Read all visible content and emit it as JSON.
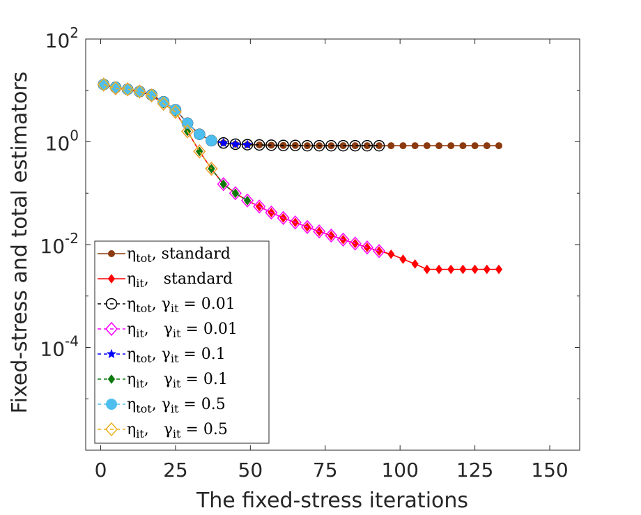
{
  "chart_data": {
    "type": "line",
    "title": "",
    "xlabel": "The  fixed-stress iterations",
    "ylabel": "Fixed-stress and total estimators",
    "xlim": [
      -5,
      160
    ],
    "ylim_log10": [
      -6,
      2
    ],
    "yscale": "log",
    "xticks": [
      0,
      25,
      50,
      75,
      100,
      125,
      150
    ],
    "xtick_labels": [
      "0",
      "25",
      "50",
      "75",
      "100",
      "125",
      "150"
    ],
    "yticks_log10": [
      2,
      0,
      -2,
      -4
    ],
    "ytick_labels": [
      {
        "base": "10",
        "exp": "2"
      },
      {
        "base": "10",
        "exp": "0"
      },
      {
        "base": "10",
        "exp": "-2"
      },
      {
        "base": "10",
        "exp": "-4"
      }
    ],
    "legend_position": "lower-left",
    "series": [
      {
        "name": "eta_tot, standard",
        "legend": {
          "sym": "η",
          "sub": "tot",
          "text": ", standard"
        },
        "color": "#8B3A0E",
        "dash": "",
        "marker": "dot-small",
        "marker_every": 4,
        "x": [
          1,
          5,
          9,
          13,
          17,
          21,
          25,
          29,
          33,
          37,
          41,
          45,
          49,
          53,
          57,
          61,
          65,
          69,
          73,
          77,
          81,
          85,
          89,
          93,
          97,
          101,
          105,
          109,
          113,
          117,
          121,
          125,
          129,
          133
        ],
        "y": [
          13,
          11.5,
          10.5,
          9.5,
          8.2,
          6,
          4.2,
          2.3,
          1.4,
          1.05,
          0.95,
          0.9,
          0.88,
          0.87,
          0.86,
          0.85,
          0.85,
          0.84,
          0.84,
          0.84,
          0.84,
          0.84,
          0.84,
          0.84,
          0.84,
          0.84,
          0.84,
          0.84,
          0.84,
          0.84,
          0.84,
          0.84,
          0.84,
          0.84
        ]
      },
      {
        "name": "eta_it, standard",
        "legend": {
          "sym": "η",
          "sub": "it",
          "text": ",   standard"
        },
        "color": "#FF0000",
        "dash": "",
        "marker": "diamond-filled",
        "marker_every": 4,
        "x": [
          1,
          5,
          9,
          13,
          17,
          21,
          25,
          29,
          33,
          37,
          41,
          45,
          49,
          53,
          57,
          61,
          65,
          69,
          73,
          77,
          81,
          85,
          89,
          93,
          97,
          101,
          105,
          109,
          113,
          117,
          121,
          125,
          129,
          133
        ],
        "y": [
          13,
          11,
          10.5,
          9.5,
          8,
          5.5,
          3.8,
          1.6,
          0.65,
          0.3,
          0.15,
          0.1,
          0.072,
          0.055,
          0.042,
          0.033,
          0.027,
          0.022,
          0.018,
          0.015,
          0.0125,
          0.0105,
          0.0088,
          0.0075,
          0.0065,
          0.0052,
          0.0042,
          0.0033,
          0.0033,
          0.0033,
          0.0033,
          0.0033,
          0.0033,
          0.0033
        ]
      },
      {
        "name": "eta_tot, gamma_it = 0.01",
        "legend": {
          "sym": "η",
          "sub": "tot",
          "text": ", γ",
          "sub2": "it",
          "text2": " = 0.01"
        },
        "color": "#000000",
        "dash": "5,4",
        "marker": "circle-open",
        "marker_every": 4,
        "x": [
          1,
          5,
          9,
          13,
          17,
          21,
          25,
          29,
          33,
          37,
          41,
          45,
          49,
          53,
          57,
          61,
          65,
          69,
          73,
          77,
          81,
          85,
          89,
          93
        ],
        "y": [
          13,
          11.5,
          10.5,
          9.5,
          8.2,
          6,
          4.2,
          2.3,
          1.4,
          1.05,
          0.95,
          0.9,
          0.88,
          0.87,
          0.86,
          0.85,
          0.85,
          0.84,
          0.84,
          0.84,
          0.84,
          0.84,
          0.84,
          0.84
        ]
      },
      {
        "name": "eta_it, gamma_it = 0.01",
        "legend": {
          "sym": "η",
          "sub": "it",
          "text": ",   γ",
          "sub2": "it",
          "text2": " = 0.01"
        },
        "color": "#FF00FF",
        "dash": "5,4",
        "marker": "diamond-open",
        "marker_every": 4,
        "x": [
          1,
          5,
          9,
          13,
          17,
          21,
          25,
          29,
          33,
          37,
          41,
          45,
          49,
          53,
          57,
          61,
          65,
          69,
          73,
          77,
          81,
          85,
          89,
          93
        ],
        "y": [
          13,
          11,
          10.5,
          9.5,
          8,
          5.5,
          3.8,
          1.6,
          0.65,
          0.3,
          0.15,
          0.1,
          0.072,
          0.055,
          0.042,
          0.033,
          0.027,
          0.022,
          0.018,
          0.015,
          0.0125,
          0.0105,
          0.0088,
          0.0075
        ]
      },
      {
        "name": "eta_tot, gamma_it = 0.1",
        "legend": {
          "sym": "η",
          "sub": "tot",
          "text": ", γ",
          "sub2": "it",
          "text2": " = 0.1"
        },
        "color": "#0000FF",
        "dash": "5,4",
        "marker": "star-filled",
        "marker_every": 4,
        "x": [
          1,
          5,
          9,
          13,
          17,
          21,
          25,
          29,
          33,
          37,
          41,
          45,
          49
        ],
        "y": [
          13,
          11.5,
          10.5,
          9.5,
          8.2,
          6,
          4.2,
          2.3,
          1.4,
          1.05,
          0.95,
          0.9,
          0.88
        ]
      },
      {
        "name": "eta_it, gamma_it = 0.1",
        "legend": {
          "sym": "η",
          "sub": "it",
          "text": ",   γ",
          "sub2": "it",
          "text2": " = 0.1"
        },
        "color": "#0B7A0B",
        "dash": "5,4",
        "marker": "diamond-filled",
        "marker_every": 4,
        "x": [
          1,
          5,
          9,
          13,
          17,
          21,
          25,
          29,
          33,
          37,
          41,
          45,
          49
        ],
        "y": [
          13,
          11,
          10.5,
          9.5,
          8,
          5.5,
          3.8,
          1.6,
          0.65,
          0.3,
          0.15,
          0.1,
          0.072
        ]
      },
      {
        "name": "eta_tot, gamma_it = 0.5",
        "legend": {
          "sym": "η",
          "sub": "tot",
          "text": ", γ",
          "sub2": "it",
          "text2": " = 0.5"
        },
        "color": "#4DBEEE",
        "dash": "5,4",
        "marker": "circle-filled",
        "marker_every": 4,
        "x": [
          1,
          5,
          9,
          13,
          17,
          21,
          25,
          29,
          33,
          37
        ],
        "y": [
          13,
          11.5,
          10.5,
          9.5,
          8.2,
          6,
          4.2,
          2.3,
          1.4,
          1.05
        ]
      },
      {
        "name": "eta_it, gamma_it = 0.5",
        "legend": {
          "sym": "η",
          "sub": "it",
          "text": ",   γ",
          "sub2": "it",
          "text2": " = 0.5"
        },
        "color": "#EDB120",
        "dash": "5,4",
        "marker": "diamond-open",
        "marker_every": 4,
        "x": [
          1,
          5,
          9,
          13,
          17,
          21,
          25,
          29,
          33,
          37
        ],
        "y": [
          13,
          11,
          10.5,
          9.5,
          8,
          5.5,
          3.8,
          1.6,
          0.65,
          0.3
        ]
      }
    ]
  }
}
